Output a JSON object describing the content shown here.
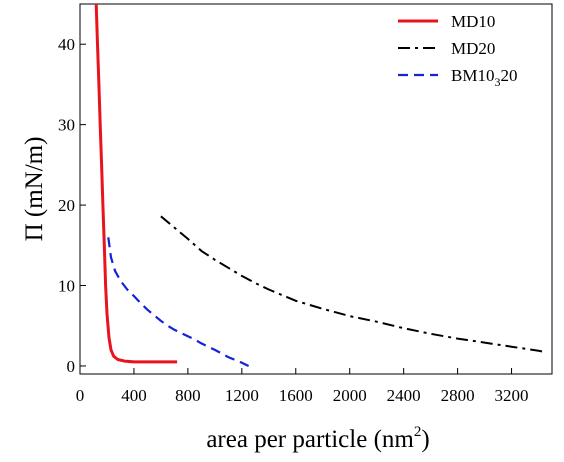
{
  "chart_data": {
    "type": "line",
    "title": "",
    "xlabel": "area per particle (nm",
    "xlabel_sup": "2",
    "xlabel_end": ")",
    "ylabel": "Π (mN/m)",
    "xlim": [
      0,
      3500
    ],
    "ylim": [
      -1,
      45
    ],
    "xticks": [
      0,
      400,
      800,
      1200,
      1600,
      2000,
      2400,
      2800,
      3200
    ],
    "yticks": [
      0,
      10,
      20,
      30,
      40
    ],
    "grid": false,
    "legend_position": "top-right",
    "series": [
      {
        "name": "MD10",
        "legend_label": {
          "main": "MD10",
          "sub": "",
          "tail": ""
        },
        "color": "#e8141b",
        "dash": "solid",
        "x": [
          120,
          130,
          140,
          150,
          160,
          170,
          180,
          190,
          200,
          215,
          230,
          250,
          280,
          330,
          400,
          500,
          600,
          720
        ],
        "y": [
          45,
          40,
          35,
          30,
          25,
          20,
          15,
          10,
          6.5,
          3.5,
          2.0,
          1.2,
          0.8,
          0.6,
          0.5,
          0.5,
          0.5,
          0.5
        ]
      },
      {
        "name": "MD20",
        "legend_label": {
          "main": "MD20",
          "sub": "",
          "tail": ""
        },
        "color": "#000000",
        "dash": "dashdot",
        "x": [
          600,
          700,
          800,
          900,
          1000,
          1100,
          1200,
          1300,
          1400,
          1500,
          1600,
          1800,
          2000,
          2200,
          2400,
          2600,
          2800,
          3000,
          3200,
          3400,
          3450
        ],
        "y": [
          18.6,
          17.2,
          15.8,
          14.3,
          13.2,
          12.2,
          11.2,
          10.3,
          9.5,
          8.8,
          8.1,
          7.1,
          6.2,
          5.5,
          4.7,
          4.0,
          3.4,
          2.9,
          2.4,
          1.9,
          1.7
        ]
      },
      {
        "name": "BM10₃20",
        "legend_label": {
          "main": "BM10",
          "sub": "3",
          "tail": "20"
        },
        "color": "#1523d6",
        "dash": "dashed",
        "x": [
          210,
          230,
          260,
          300,
          350,
          400,
          450,
          500,
          550,
          600,
          650,
          700,
          750,
          800,
          850,
          900,
          1000,
          1100,
          1200,
          1250
        ],
        "y": [
          16,
          13.5,
          11.8,
          10.6,
          9.5,
          8.7,
          7.8,
          7.0,
          6.3,
          5.6,
          5.0,
          4.5,
          4.1,
          3.7,
          3.3,
          2.8,
          2.0,
          1.1,
          0.4,
          0.0
        ]
      }
    ]
  }
}
